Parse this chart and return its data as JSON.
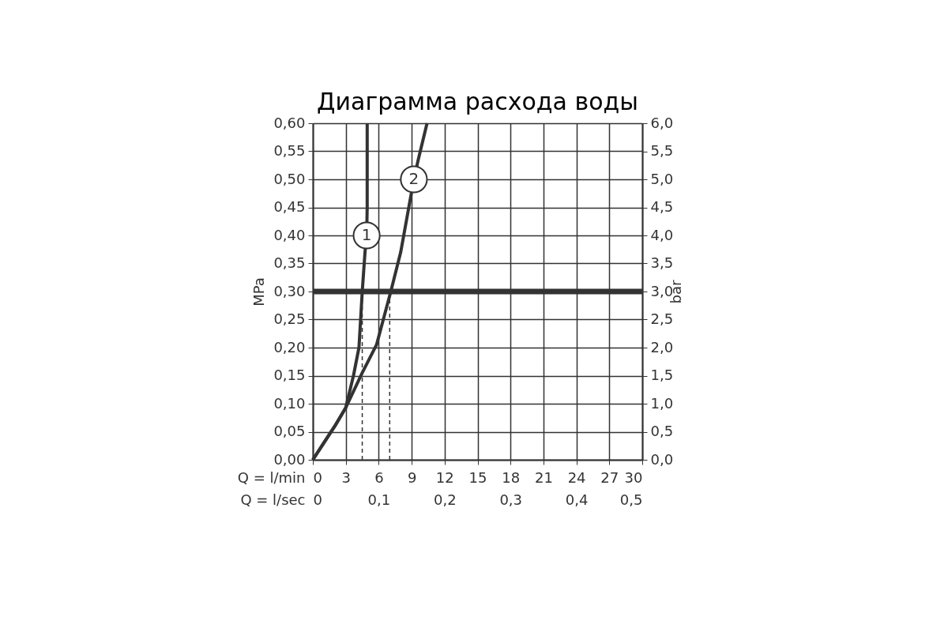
{
  "chart_data": {
    "type": "line",
    "title": "Диаграмма расхода воды",
    "xlabel": "Q = l/min",
    "x2label": "Q = l/sec",
    "ylabel": "MPa",
    "y2label": "bar",
    "series": [
      {
        "name": "1",
        "color": "#333333",
        "x": [
          0,
          1,
          2,
          3,
          3.7,
          4.2,
          4.5,
          4.75,
          4.9,
          4.95,
          4.95
        ],
        "values": [
          0,
          0.03,
          0.06,
          0.093,
          0.15,
          0.2,
          0.3,
          0.37,
          0.4,
          0.45,
          0.6
        ]
      },
      {
        "name": "2",
        "color": "#333333",
        "x": [
          0,
          1,
          2,
          3,
          4.5,
          5.8,
          7.1,
          8.0,
          9.2,
          9.6,
          10.4
        ],
        "values": [
          0,
          0.03,
          0.06,
          0.093,
          0.155,
          0.205,
          0.3,
          0.37,
          0.5,
          0.535,
          0.6
        ]
      }
    ],
    "xlim": [
      0,
      30
    ],
    "xticks": [
      0,
      3,
      6,
      9,
      12,
      15,
      18,
      21,
      24,
      27,
      30
    ],
    "x2lim": [
      0,
      0.5
    ],
    "x2ticks": [
      0,
      {
        "value": 0.1,
        "label": "0,1"
      },
      {
        "value": 0.2,
        "label": "0,2"
      },
      {
        "value": 0.3,
        "label": "0,3"
      },
      {
        "value": 0.4,
        "label": "0,4"
      },
      {
        "value": 0.5,
        "label": "0,5"
      }
    ],
    "ylim": [
      0,
      0.6
    ],
    "yticks": [
      {
        "value": 0,
        "label": "0,00"
      },
      {
        "value": 0.05,
        "label": "0,05"
      },
      {
        "value": 0.1,
        "label": "0,10"
      },
      {
        "value": 0.15,
        "label": "0,15"
      },
      {
        "value": 0.2,
        "label": "0,20"
      },
      {
        "value": 0.25,
        "label": "0,25"
      },
      {
        "value": 0.3,
        "label": "0,30"
      },
      {
        "value": 0.35,
        "label": "0,35"
      },
      {
        "value": 0.4,
        "label": "0,40"
      },
      {
        "value": 0.45,
        "label": "0,45"
      },
      {
        "value": 0.5,
        "label": "0,50"
      },
      {
        "value": 0.55,
        "label": "0,55"
      },
      {
        "value": 0.6,
        "label": "0,60"
      }
    ],
    "y2lim": [
      0,
      6
    ],
    "y2ticks": [
      {
        "value": 0,
        "label": "0,0"
      },
      {
        "value": 0.5,
        "label": "0,5"
      },
      {
        "value": 1,
        "label": "1,0"
      },
      {
        "value": 1.5,
        "label": "1,5"
      },
      {
        "value": 2,
        "label": "2,0"
      },
      {
        "value": 2.5,
        "label": "2,5"
      },
      {
        "value": 3,
        "label": "3,0"
      },
      {
        "value": 3.5,
        "label": "3,5"
      },
      {
        "value": 4,
        "label": "4,0"
      },
      {
        "value": 4.5,
        "label": "4,5"
      },
      {
        "value": 5,
        "label": "5,0"
      },
      {
        "value": 5.5,
        "label": "5,5"
      },
      {
        "value": 6,
        "label": "6,0"
      }
    ],
    "ref_lines": [
      {
        "axis": "y",
        "value": 0.3,
        "color": "#333333"
      },
      {
        "axis": "x",
        "value": 4.5,
        "line_style": "dashed",
        "color": "#333333"
      },
      {
        "axis": "x",
        "value": 7,
        "line_style": "dashed",
        "color": "#333333"
      }
    ],
    "grid": true
  }
}
